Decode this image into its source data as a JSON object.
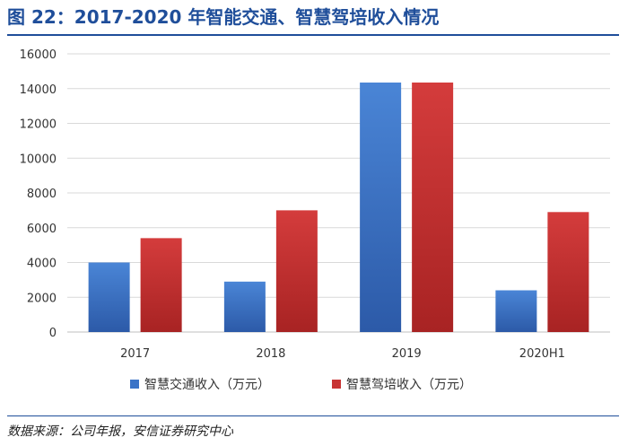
{
  "title": "图 22：2017-2020 年智能交通、智慧驾培收入情况",
  "source": "数据来源：公司年报，安信证券研究中心",
  "colors": {
    "title": "#1f4e9a",
    "series_1": "#3a73c7",
    "series_2": "#c83434",
    "grid": "#d9d9d9"
  },
  "chart_data": {
    "type": "bar",
    "categories": [
      "2017",
      "2018",
      "2019",
      "2020H1"
    ],
    "series": [
      {
        "name": "智慧交通收入（万元）",
        "values": [
          4000,
          2900,
          14350,
          2400
        ]
      },
      {
        "name": "智慧驾培收入（万元）",
        "values": [
          5400,
          7000,
          14350,
          6900
        ]
      }
    ],
    "y_ticks": [
      "0",
      "2000",
      "4000",
      "6000",
      "8000",
      "10000",
      "12000",
      "14000",
      "16000"
    ],
    "ylim": [
      0,
      16000
    ],
    "grid": true,
    "legend": "bottom"
  }
}
